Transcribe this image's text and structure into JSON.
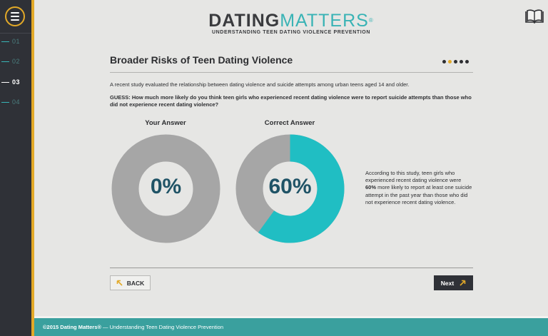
{
  "sidebar": {
    "menu_icon": "hamburger-menu-icon",
    "nav": [
      {
        "num": "01",
        "active": false
      },
      {
        "num": "02",
        "active": false
      },
      {
        "num": "03",
        "active": true
      },
      {
        "num": "04",
        "active": false
      }
    ]
  },
  "header": {
    "logo_dating": "DATING",
    "logo_matters": "MATTERS",
    "logo_reg": "®",
    "logo_sub": "UNDERSTANDING TEEN DATING VIOLENCE PREVENTION",
    "book_icon": "book-icon"
  },
  "page": {
    "title": "Broader Risks of Teen Dating Violence",
    "progress": {
      "total": 5,
      "current": 2
    },
    "intro": "A recent study evaluated the relationship between dating violence and suicide attempts among urban teens aged 14 and older.",
    "question": "GUESS: How much more likely do you think teen girls who experienced recent dating violence were to report suicide attempts than those who did not experience recent dating violence?",
    "your_answer": {
      "label": "Your Answer",
      "value": "0%",
      "fraction": 0.0
    },
    "correct_answer": {
      "label": "Correct Answer",
      "value": "60%",
      "fraction": 0.6
    },
    "explanation_pre": "According to this study, teen girls who experienced recent dating violence were ",
    "explanation_bold": "60%",
    "explanation_post": " more likely to report at least one suicide attempt in the past year than those who did not experience recent dating violence."
  },
  "buttons": {
    "back_label": "BACK",
    "next_label": "Next"
  },
  "footer": {
    "copyright": "©2015 Dating Matters®",
    "text": " — Understanding Teen Dating Violence Prevention"
  },
  "colors": {
    "teal": "#20bec3",
    "gray_donut": "#a6a6a6",
    "accent": "#e2a928",
    "dark": "#2f3137"
  }
}
